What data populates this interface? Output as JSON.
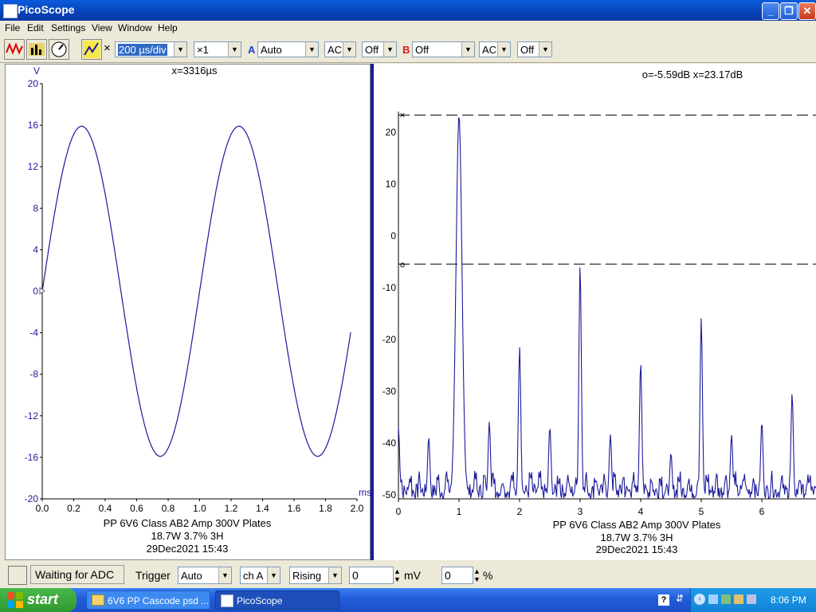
{
  "window": {
    "title": "PicoScope",
    "app_icon": "picoscope-icon"
  },
  "menu": [
    "File",
    "Edit",
    "Settings",
    "View",
    "Window",
    "Help"
  ],
  "toolbar": {
    "timebase": "200 µs/div",
    "multiplier": "×1",
    "channel_a_label": "A",
    "channel_a_range": "Auto",
    "channel_a_coupling": "AC",
    "channel_a_extra": "Off",
    "channel_b_label": "B",
    "channel_b_range": "Off",
    "channel_b_coupling": "AC",
    "channel_b_extra": "Off",
    "cross_symbol": "×"
  },
  "scope": {
    "cursor_readout": "x=3316µs",
    "y_unit": "V",
    "x_unit": "ms",
    "caption_line1": "PP 6V6 Class AB2 Amp 300V Plates",
    "caption_line2": "18.7W 3.7% 3H",
    "caption_line3": "29Dec2021  15:43",
    "trace_color": "#1a1a9c",
    "zero_marker": "0"
  },
  "spectrum": {
    "cursor_readout": "o=-5.59dB  x=23.17dB",
    "caption_line1": "PP 6V6 Class AB2 Amp 300V Plates",
    "caption_line2": "18.7W 3.7% 3H",
    "caption_line3": "29Dec2021  15:43",
    "marker_x": "×",
    "marker_o": "o"
  },
  "chart_data": [
    {
      "type": "line",
      "xlabel": "ms",
      "ylabel": "V",
      "xlim": [
        0,
        2.0
      ],
      "ylim": [
        -20,
        20
      ],
      "x_ticks": [
        "0.0",
        "0.2",
        "0.4",
        "0.6",
        "0.8",
        "1.0",
        "1.2",
        "1.4",
        "1.6",
        "1.8",
        "2.0"
      ],
      "y_ticks": [
        "20",
        "16",
        "12",
        "8",
        "4",
        "0",
        "-4",
        "-8",
        "-12",
        "-16",
        "-20"
      ],
      "grid": false,
      "signal": {
        "shape": "sine",
        "amplitude": 15.9,
        "period_ms": 1.0,
        "x_start_ms": 0.0,
        "x_end_ms": 1.96
      }
    },
    {
      "type": "line",
      "ylim": [
        -51,
        23.17
      ],
      "x_ticks": [
        "0",
        "1",
        "2",
        "3",
        "4",
        "5",
        "6"
      ],
      "y_ticks": [
        "20",
        "10",
        "0",
        "-10",
        "-20",
        "-30",
        "-40",
        "-50"
      ],
      "grid": false,
      "cursor_x_db": 23.17,
      "cursor_o_db": -5.59,
      "x": [
        0,
        0.5,
        1,
        1.5,
        2,
        2.5,
        3,
        3.5,
        4,
        4.5,
        5,
        5.5,
        6,
        6.5
      ],
      "peaks_db": [
        -37,
        -39,
        23.17,
        -36,
        -21.5,
        -37,
        -5.59,
        -38.5,
        -24.5,
        -42,
        -16,
        -38.5,
        -36,
        -30.5
      ]
    }
  ],
  "status": {
    "state": "Waiting for ADC",
    "trigger_label": "Trigger",
    "trigger_mode": "Auto",
    "trigger_channel": "ch A",
    "trigger_edge": "Rising",
    "trigger_level": "0",
    "trigger_level_unit": "mV",
    "trigger_delay": "0",
    "trigger_delay_unit": "%"
  },
  "taskbar": {
    "start": "start",
    "items": [
      "6V6 PP Cascode psd ...",
      "PicoScope"
    ],
    "clock": "8:06 PM"
  }
}
